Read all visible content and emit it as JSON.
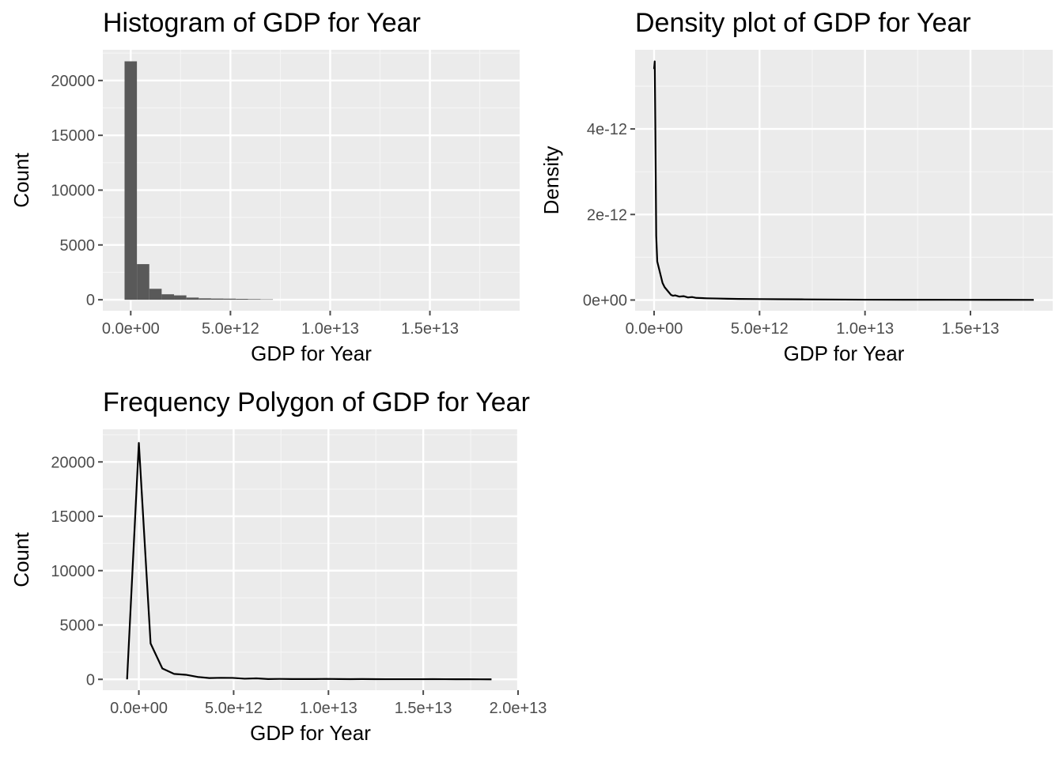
{
  "colors": {
    "panel_background": "#EBEBEB",
    "grid_major": "#FFFFFF",
    "grid_minor": "#F5F5F5",
    "bar_fill": "#595959",
    "line": "#000000",
    "tick_text": "#4D4D4D",
    "text": "#000000"
  },
  "chart_data": [
    {
      "type": "bar",
      "title": "Histogram of GDP for Year",
      "xlabel": "GDP for Year",
      "ylabel": "Count",
      "xlim": [
        -1400000000000.0,
        19500000000000.0
      ],
      "ylim": [
        -1000,
        22800
      ],
      "x_ticks": [
        0,
        5000000000000.0,
        10000000000000.0,
        15000000000000.0
      ],
      "x_tick_labels": [
        "0.0e+00",
        "5.0e+12",
        "1.0e+13",
        "1.5e+13"
      ],
      "y_ticks": [
        0,
        5000,
        10000,
        15000,
        20000
      ],
      "y_tick_labels": [
        "0",
        "5000",
        "10000",
        "15000",
        "20000"
      ],
      "grid": true,
      "bin_width": 620000000000.0,
      "bin_centers": [
        0,
        620000000000.0,
        1240000000000.0,
        1860000000000.0,
        2480000000000.0,
        3100000000000.0,
        3720000000000.0,
        4340000000000.0,
        4960000000000.0,
        5580000000000.0,
        6200000000000.0,
        6820000000000.0
      ],
      "values": [
        21750,
        3250,
        1000,
        500,
        400,
        200,
        130,
        110,
        100,
        80,
        60,
        40
      ]
    },
    {
      "type": "line",
      "title": "Density plot of GDP for Year",
      "xlabel": "GDP for Year",
      "ylabel": "Density",
      "xlim": [
        -900000000000.0,
        18900000000000.0
      ],
      "ylim": [
        -2.5e-13,
        5.85e-12
      ],
      "x_ticks": [
        0,
        5000000000000.0,
        10000000000000.0,
        15000000000000.0
      ],
      "x_tick_labels": [
        "0.0e+00",
        "5.0e+12",
        "1.0e+13",
        "1.5e+13"
      ],
      "y_ticks": [
        0,
        2e-12,
        4e-12
      ],
      "y_tick_labels": [
        "0e+00",
        "2e-12",
        "4e-12"
      ],
      "grid": true,
      "x": [
        0,
        30000000000.0,
        60000000000.0,
        100000000000.0,
        150000000000.0,
        200000000000.0,
        300000000000.0,
        400000000000.0,
        500000000000.0,
        600000000000.0,
        700000000000.0,
        800000000000.0,
        900000000000.0,
        1000000000000.0,
        1200000000000.0,
        1400000000000.0,
        1600000000000.0,
        1800000000000.0,
        2000000000000.0,
        2500000000000.0,
        3000000000000.0,
        3500000000000.0,
        4000000000000.0,
        5000000000000.0,
        6000000000000.0,
        7000000000000.0,
        8000000000000.0,
        9000000000000.0,
        10000000000000.0,
        12000000000000.0,
        14000000000000.0,
        16000000000000.0,
        18000000000000.0
      ],
      "y": [
        5.4e-12,
        5.58e-12,
        4e-12,
        1.5e-12,
        9e-13,
        8e-13,
        6e-13,
        4e-13,
        3e-13,
        2.4e-13,
        1.8e-13,
        1.2e-13,
        1e-13,
        1.1e-13,
        8e-14,
        9e-14,
        6e-14,
        7e-14,
        5e-14,
        4e-14,
        3.5e-14,
        3e-14,
        2.5e-14,
        2.2e-14,
        1.8e-14,
        1.5e-14,
        1.2e-14,
        1e-14,
        8e-15,
        6e-15,
        5e-15,
        4e-15,
        3e-15
      ]
    },
    {
      "type": "line",
      "title": "Frequency Polygon of GDP for Year",
      "xlabel": "GDP for Year",
      "ylabel": "Count",
      "xlim": [
        -1900000000000.0,
        20000000000000.0
      ],
      "ylim": [
        -1000,
        23000
      ],
      "x_ticks": [
        0,
        5000000000000.0,
        10000000000000.0,
        15000000000000.0,
        20000000000000.0
      ],
      "x_tick_labels": [
        "0.0e+00",
        "5.0e+12",
        "1.0e+13",
        "1.5e+13",
        "2.0e+13"
      ],
      "y_ticks": [
        0,
        5000,
        10000,
        15000,
        20000
      ],
      "y_tick_labels": [
        "0",
        "5000",
        "10000",
        "15000",
        "20000"
      ],
      "grid": true,
      "x": [
        -620000000000.0,
        0,
        620000000000.0,
        1240000000000.0,
        1860000000000.0,
        2480000000000.0,
        3100000000000.0,
        3720000000000.0,
        4340000000000.0,
        4960000000000.0,
        5580000000000.0,
        6200000000000.0,
        6820000000000.0,
        7440000000000.0,
        8060000000000.0,
        8680000000000.0,
        9300000000000.0,
        9920000000000.0,
        10540000000000.0,
        11160000000000.0,
        11780000000000.0,
        12400000000000.0,
        13020000000000.0,
        13640000000000.0,
        14260000000000.0,
        14880000000000.0,
        15500000000000.0,
        16120000000000.0,
        16740000000000.0,
        17360000000000.0,
        17980000000000.0,
        18600000000000.0
      ],
      "y": [
        0,
        21750,
        3300,
        1000,
        500,
        420,
        220,
        120,
        140,
        130,
        60,
        90,
        30,
        40,
        30,
        30,
        25,
        40,
        25,
        20,
        25,
        20,
        15,
        15,
        15,
        15,
        20,
        15,
        10,
        10,
        5,
        0
      ]
    }
  ]
}
